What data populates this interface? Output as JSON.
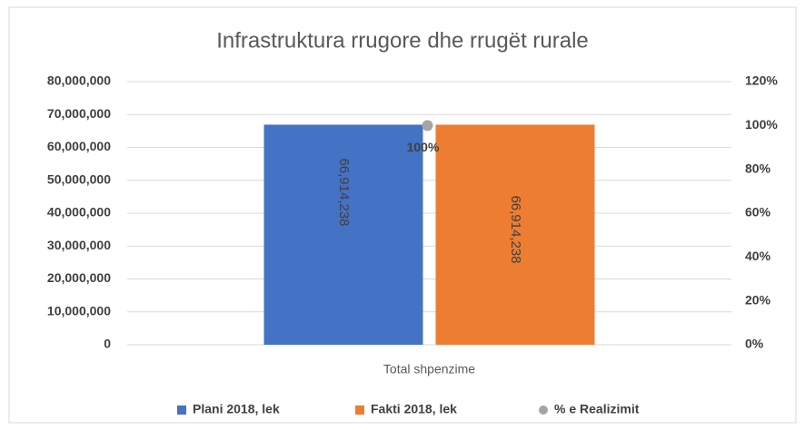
{
  "chart_data": {
    "type": "bar",
    "title": "Infrastruktura rrugore dhe rrugët rurale",
    "categories": [
      "Total shpenzime"
    ],
    "series": [
      {
        "name": "Plani 2018, lek",
        "color": "#4472c4",
        "values": [
          66914238
        ],
        "value_labels": [
          "66,914,238"
        ]
      },
      {
        "name": "Fakti 2018, lek",
        "color": "#ed7d31",
        "values": [
          66914238
        ],
        "value_labels": [
          "66,914,238"
        ]
      },
      {
        "name": "% e Realizimit",
        "color": "#a5a5a5",
        "type": "scatter",
        "axis": "y2",
        "values": [
          100
        ],
        "value_labels": [
          "100%"
        ]
      }
    ],
    "ylim": [
      0,
      80000000
    ],
    "yticks": [
      0,
      {
        "value": 10000000,
        "label": "10,000,000"
      },
      {
        "value": 20000000,
        "label": "20,000,000"
      },
      {
        "value": 30000000,
        "label": "30,000,000"
      },
      {
        "value": 40000000,
        "label": "40,000,000"
      },
      {
        "value": 50000000,
        "label": "50,000,000"
      },
      {
        "value": 60000000,
        "label": "60,000,000"
      },
      {
        "value": 70000000,
        "label": "70,000,000"
      },
      {
        "value": 80000000,
        "label": "80,000,000"
      }
    ],
    "y2lim": [
      0,
      120
    ],
    "y2ticks": [
      {
        "value": 0,
        "label": "0%"
      },
      {
        "value": 20,
        "label": "20%"
      },
      {
        "value": 40,
        "label": "40%"
      },
      {
        "value": 60,
        "label": "60%"
      },
      {
        "value": 80,
        "label": "80%"
      },
      {
        "value": 100,
        "label": "100%"
      },
      {
        "value": 120,
        "label": "120%"
      }
    ],
    "grid": true,
    "legend": "bottom"
  }
}
